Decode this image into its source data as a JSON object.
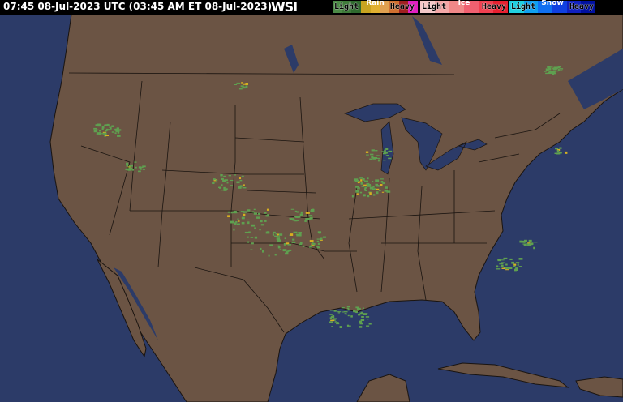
{
  "header": {
    "timestamp": "07:45 08-Jul-2023 UTC  (03:45 AM ET 08-Jul-2023)",
    "logo": "WSI"
  },
  "legend": {
    "rain": {
      "title": "Rain",
      "light": "Light",
      "heavy": "Heavy",
      "colors": [
        "#4c8a46",
        "#3f7a3a",
        "#2f6a2e",
        "#c8a420",
        "#e0b030",
        "#e0a050",
        "#d07030",
        "#a02020",
        "#e020c0"
      ]
    },
    "ice": {
      "title": "Ice",
      "light": "Light",
      "heavy": "Heavy",
      "colors": [
        "#f4c8c8",
        "#f4a8a8",
        "#f08888",
        "#f06070",
        "#f04050",
        "#e82030"
      ]
    },
    "snow": {
      "title": "Snow",
      "light": "Light",
      "heavy": "Heavy",
      "colors": [
        "#20d0e0",
        "#10a0f0",
        "#1070f0",
        "#1040e0",
        "#1020c0",
        "#0010a0"
      ]
    }
  },
  "colors": {
    "ocean": "#2c3b68",
    "land": "#6b5444",
    "borders": "#1a1410",
    "precip_light": "#5fa050",
    "precip_moderate": "#d8b020"
  }
}
